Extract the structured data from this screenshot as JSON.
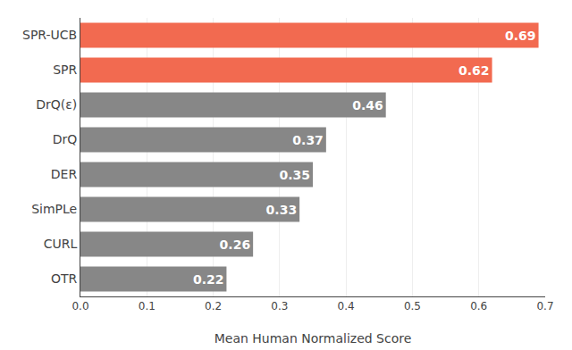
{
  "chart_data": {
    "type": "bar",
    "orientation": "horizontal",
    "categories": [
      "SPR-UCB",
      "SPR",
      "DrQ(ε)",
      "DrQ",
      "DER",
      "SimPLe",
      "CURL",
      "OTR"
    ],
    "values": [
      0.69,
      0.62,
      0.46,
      0.37,
      0.35,
      0.33,
      0.26,
      0.22
    ],
    "colors": [
      "#F26A50",
      "#F26A50",
      "#878787",
      "#878787",
      "#878787",
      "#878787",
      "#878787",
      "#878787"
    ],
    "xlabel": "Mean Human Normalized Score",
    "xlim": [
      0.0,
      0.7
    ],
    "xticks": [
      {
        "value": 0.0,
        "label": "0.0"
      },
      0.1,
      0.2,
      0.3,
      0.4,
      0.5,
      0.6,
      0.7
    ],
    "grid": true,
    "data_labels": true
  }
}
